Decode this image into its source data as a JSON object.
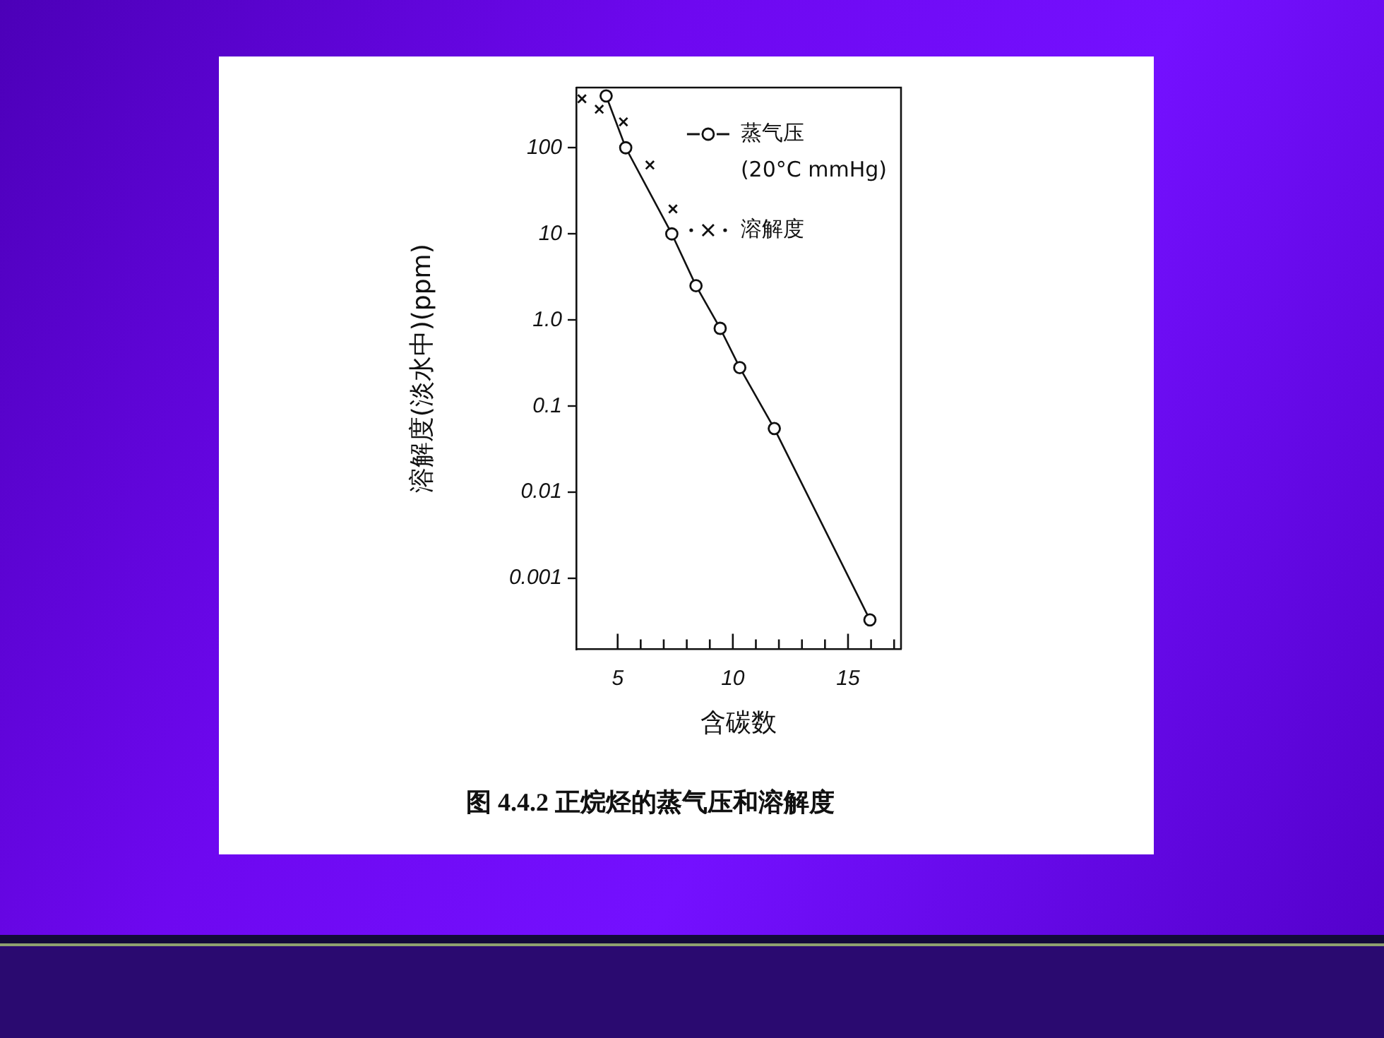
{
  "chart_data": {
    "type": "scatter",
    "title": "图 4.4.2 正烷烃的蒸气压和溶解度",
    "xlabel": "含碳数",
    "ylabel": "溶解度(淡水中)(ppm)",
    "log": "y",
    "xlim": [
      3.2,
      17.3
    ],
    "xticks": [
      5,
      {
        "value": 6,
        "label": null
      },
      {
        "value": 7,
        "label": null
      },
      {
        "value": 8,
        "label": null
      },
      {
        "value": 9,
        "label": null
      },
      10,
      {
        "value": 11,
        "label": null
      },
      {
        "value": 12,
        "label": null
      },
      {
        "value": 13,
        "label": null
      },
      {
        "value": 14,
        "label": null
      },
      15,
      {
        "value": 16,
        "label": null
      },
      {
        "value": 17,
        "label": null
      }
    ],
    "ylim": [
      0.00015,
      500
    ],
    "yticks": [
      0.001,
      0.01,
      0.1,
      {
        "value": 1,
        "label": "1.0"
      },
      10,
      100
    ],
    "legend": "top right",
    "series": [
      {
        "name": "蒸气压 (20°C mmHg)",
        "type": "line",
        "marker": "circle",
        "color": "#111111",
        "x": [
          4.5,
          5.35,
          7.35,
          8.4,
          9.45,
          10.3,
          11.8,
          15.95
        ],
        "values": [
          400,
          100,
          10,
          2.5,
          0.8,
          0.28,
          0.055,
          0.00033
        ]
      },
      {
        "name": "溶解度",
        "type": "scatter",
        "marker": "cross",
        "color": "#111111",
        "x": [
          3.45,
          4.2,
          5.25,
          6.4,
          7.4
        ],
        "values": [
          370,
          280,
          200,
          63,
          19.5
        ]
      }
    ]
  }
}
